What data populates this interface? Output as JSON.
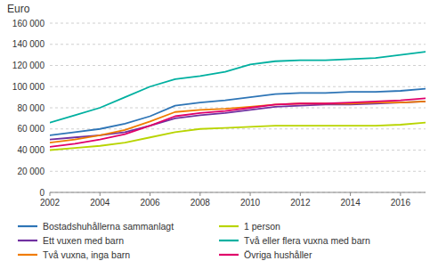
{
  "chart_data": {
    "type": "line",
    "ylabel": "Euro",
    "x": [
      2002,
      2003,
      2004,
      2005,
      2006,
      2007,
      2008,
      2009,
      2010,
      2011,
      2012,
      2013,
      2014,
      2015,
      2016,
      2017
    ],
    "series": [
      {
        "name": "Bostadshuhållerna sammanlagt",
        "color": "#2e75b6",
        "values": [
          54000,
          57000,
          60000,
          65000,
          72000,
          82000,
          85000,
          87000,
          90000,
          93000,
          94000,
          94000,
          95000,
          95000,
          96000,
          98000
        ]
      },
      {
        "name": "1 person",
        "color": "#b8d400",
        "values": [
          40000,
          42000,
          44000,
          47000,
          52000,
          57000,
          60000,
          61000,
          62000,
          63000,
          63000,
          63000,
          63000,
          63000,
          64000,
          66000
        ]
      },
      {
        "name": "Ett vuxen med barn",
        "color": "#7030a0",
        "values": [
          50000,
          52000,
          54000,
          57000,
          63000,
          70000,
          73000,
          75000,
          78000,
          81000,
          82000,
          83000,
          83000,
          84000,
          85000,
          86000
        ]
      },
      {
        "name": "Två eller flera vuxna med barn",
        "color": "#00b0a0",
        "values": [
          66000,
          73000,
          80000,
          90000,
          100000,
          107000,
          110000,
          114000,
          121000,
          124000,
          125000,
          125000,
          126000,
          127000,
          130000,
          133000
        ]
      },
      {
        "name": "Två vuxna, inga barn",
        "color": "#f07c00",
        "values": [
          47000,
          50000,
          54000,
          59000,
          67000,
          76000,
          78000,
          79000,
          81000,
          83000,
          84000,
          84000,
          84000,
          85000,
          85000,
          86000
        ]
      },
      {
        "name": "Övriga hushåller",
        "color": "#e0006a",
        "values": [
          43000,
          46000,
          50000,
          55000,
          63000,
          72000,
          75000,
          77000,
          80000,
          83000,
          84000,
          84000,
          85000,
          86000,
          87000,
          89000
        ]
      }
    ],
    "xlim": [
      2002,
      2017
    ],
    "xticks": [
      2002,
      2004,
      2006,
      2008,
      2010,
      2012,
      2014,
      2016
    ],
    "ylim": [
      0,
      160000
    ],
    "yticks": [
      0,
      {
        "value": 20000,
        "label": "20 000"
      },
      {
        "value": 40000,
        "label": "40 000"
      },
      {
        "value": 60000,
        "label": "60 000"
      },
      {
        "value": 80000,
        "label": "80 000"
      },
      {
        "value": 100000,
        "label": "100 000"
      },
      {
        "value": 120000,
        "label": "120 000"
      },
      {
        "value": 140000,
        "label": "140 000"
      },
      {
        "value": 160000,
        "label": "160 000"
      }
    ],
    "grid": true,
    "legend": "bottom"
  }
}
